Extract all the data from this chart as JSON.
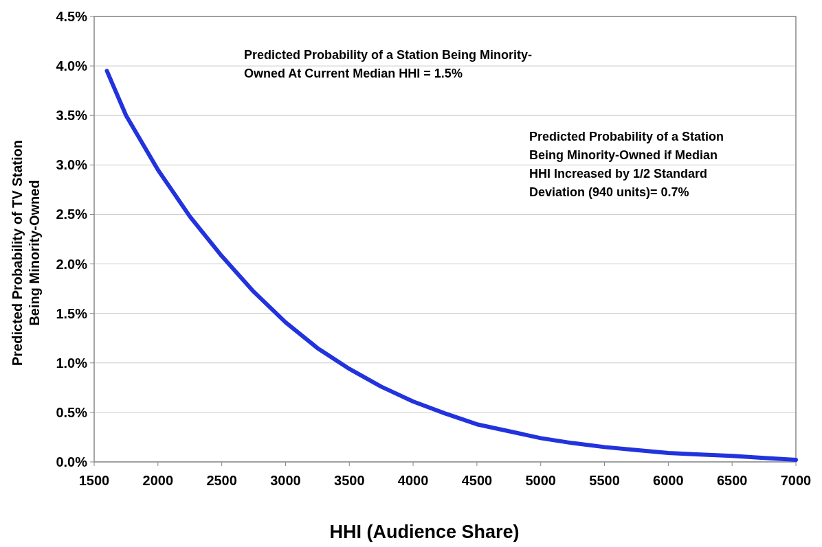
{
  "chart_data": {
    "type": "line",
    "xlabel": "HHI (Audience Share)",
    "ylabel": "Predicted Probability of TV Station\nBeing Minority-Owned",
    "x": [
      1600,
      1750,
      2000,
      2250,
      2500,
      2750,
      3000,
      3250,
      3500,
      3750,
      4000,
      4250,
      4500,
      4750,
      5000,
      5250,
      5500,
      5750,
      6000,
      6250,
      6500,
      6750,
      7000
    ],
    "series": [
      {
        "color": "#2233dd",
        "values": [
          3.95,
          3.5,
          2.95,
          2.48,
          2.08,
          1.72,
          1.41,
          1.15,
          0.94,
          0.76,
          0.61,
          0.49,
          0.38,
          0.31,
          0.24,
          0.19,
          0.15,
          0.12,
          0.09,
          0.075,
          0.06,
          0.04,
          0.02
        ]
      }
    ],
    "xlim": [
      1500,
      7000
    ],
    "xticks": [
      1500,
      2000,
      2500,
      3000,
      3500,
      4000,
      4500,
      5000,
      5500,
      6000,
      6500,
      7000
    ],
    "ylim": [
      0,
      4.5
    ],
    "yticks": [
      {
        "value": 0,
        "label": "0.0%"
      },
      {
        "value": 0.5,
        "label": "0.5%"
      },
      {
        "value": 1,
        "label": "1.0%"
      },
      {
        "value": 1.5,
        "label": "1.5%"
      },
      {
        "value": 2,
        "label": "2.0%"
      },
      {
        "value": 2.5,
        "label": "2.5%"
      },
      {
        "value": 3,
        "label": "3.0%"
      },
      {
        "value": 3.5,
        "label": "3.5%"
      },
      {
        "value": 4,
        "label": "4.0%"
      },
      {
        "value": 4.5,
        "label": "4.5%"
      }
    ],
    "grid": "y",
    "marker": "none",
    "line_style": "solid",
    "annotations": [
      "Predicted Probability of a Station Being Minority-\nOwned At Current Median HHI = 1.5%",
      "Predicted Probability of a Station\nBeing Minority-Owned if Median\nHHI Increased by 1/2 Standard\nDeviation (940 units)= 0.7%"
    ]
  }
}
